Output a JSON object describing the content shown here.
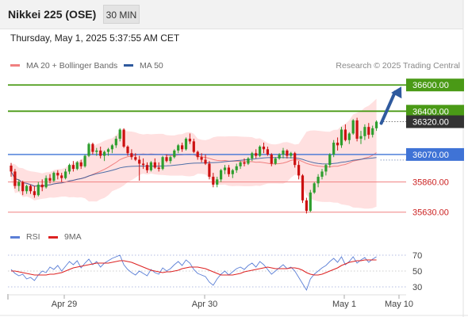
{
  "header": {
    "title": "Nikkei 225 (OSE)",
    "interval": "30 MIN",
    "timestamp": "Thursday, May 1, 2025 5:37:55 AM CET"
  },
  "colors": {
    "bullish": "#2e9e2e",
    "bearish": "#cc1111",
    "bands": "#ffdada",
    "ma20": "#f08080",
    "ma50": "#2f5a9e",
    "resistance": "#4a9a16",
    "pivot": "#3f73d6",
    "support": "#f08080",
    "last_price": "#333333",
    "arrow": "#2f5a9e",
    "rsi": "#5b7fd6",
    "rsi_ma": "#dd2222"
  },
  "chart_data": [
    {
      "type": "candlestick",
      "legend": [
        {
          "label": "MA 20 + Bollinger Bands",
          "color": "#f08080"
        },
        {
          "label": "MA 50",
          "color": "#2f5a9e"
        }
      ],
      "credit": "Research © 2025 Trading Central",
      "ylim": [
        35580,
        36680
      ],
      "x_ticks": [
        "Apr 29",
        "Apr 30",
        "May 1",
        "May 10"
      ],
      "levels": [
        {
          "label": "36600.00",
          "value": 36600,
          "kind": "resistance",
          "style": "box"
        },
        {
          "label": "36400.00",
          "value": 36400,
          "kind": "resistance",
          "style": "box"
        },
        {
          "label": "36320.00",
          "value": 36320,
          "kind": "last",
          "style": "box"
        },
        {
          "label": "36070.00",
          "value": 36070,
          "kind": "pivot",
          "style": "box"
        },
        {
          "label": "35860.00",
          "value": 35860,
          "kind": "support",
          "style": "text"
        },
        {
          "label": "35630.00",
          "value": 35630,
          "kind": "support",
          "style": "text"
        }
      ],
      "forecast_target": 36600,
      "candles": [
        [
          35985,
          36005,
          35900,
          35940
        ],
        [
          35940,
          35960,
          35810,
          35830
        ],
        [
          35830,
          35880,
          35790,
          35860
        ],
        [
          35860,
          35870,
          35760,
          35790
        ],
        [
          35790,
          35840,
          35770,
          35830
        ],
        [
          35830,
          35840,
          35770,
          35790
        ],
        [
          35790,
          35830,
          35740,
          35760
        ],
        [
          35760,
          35860,
          35750,
          35840
        ],
        [
          35840,
          35880,
          35790,
          35820
        ],
        [
          35820,
          35910,
          35810,
          35890
        ],
        [
          35890,
          35920,
          35850,
          35870
        ],
        [
          35870,
          35940,
          35860,
          35930
        ],
        [
          35930,
          35950,
          35880,
          35910
        ],
        [
          35910,
          35930,
          35860,
          35890
        ],
        [
          35890,
          35960,
          35880,
          35940
        ],
        [
          35940,
          36000,
          35920,
          35990
        ],
        [
          35990,
          36020,
          35940,
          35960
        ],
        [
          35960,
          36020,
          35950,
          36010
        ],
        [
          36010,
          36030,
          35960,
          35980
        ],
        [
          35980,
          36070,
          35970,
          36060
        ],
        [
          36060,
          36160,
          36050,
          36150
        ],
        [
          36150,
          36160,
          36070,
          36090
        ],
        [
          36090,
          36120,
          36060,
          36100
        ],
        [
          36100,
          36130,
          36040,
          36060
        ],
        [
          36060,
          36100,
          36020,
          36090
        ],
        [
          36090,
          36120,
          36060,
          36110
        ],
        [
          36110,
          36150,
          36080,
          36140
        ],
        [
          36140,
          36210,
          36120,
          36190
        ],
        [
          36190,
          36270,
          36170,
          36260
        ],
        [
          36260,
          36270,
          36120,
          36130
        ],
        [
          36130,
          36140,
          36060,
          36080
        ],
        [
          36080,
          36110,
          36030,
          36050
        ],
        [
          36050,
          36080,
          36020,
          36030
        ],
        [
          36030,
          36060,
          35870,
          36000
        ],
        [
          36000,
          36040,
          35960,
          35990
        ],
        [
          35990,
          36010,
          35930,
          35950
        ],
        [
          35950,
          36020,
          35940,
          36010
        ],
        [
          36010,
          36040,
          35960,
          35970
        ],
        [
          35970,
          36010,
          35940,
          35960
        ],
        [
          35960,
          36060,
          35950,
          36050
        ],
        [
          36050,
          36070,
          36010,
          36020
        ],
        [
          36020,
          36060,
          36000,
          36050
        ],
        [
          36050,
          36110,
          36040,
          36100
        ],
        [
          36100,
          36150,
          36080,
          36140
        ],
        [
          36140,
          36160,
          36090,
          36110
        ],
        [
          36110,
          36200,
          36100,
          36190
        ],
        [
          36190,
          36230,
          36150,
          36170
        ],
        [
          36170,
          36190,
          36080,
          36090
        ],
        [
          36090,
          36100,
          36030,
          36050
        ],
        [
          36050,
          36080,
          36010,
          36030
        ],
        [
          36030,
          36070,
          35990,
          36000
        ],
        [
          36000,
          36020,
          35880,
          35900
        ],
        [
          35900,
          35930,
          35820,
          35840
        ],
        [
          35840,
          35900,
          35820,
          35880
        ],
        [
          35880,
          35960,
          35860,
          35950
        ],
        [
          35950,
          35990,
          35920,
          35970
        ],
        [
          35970,
          35990,
          35900,
          35920
        ],
        [
          35920,
          35960,
          35890,
          35950
        ],
        [
          35950,
          36000,
          35930,
          35980
        ],
        [
          35980,
          36020,
          35960,
          36010
        ],
        [
          36010,
          36040,
          35980,
          36000
        ],
        [
          36000,
          36050,
          35990,
          36040
        ],
        [
          36040,
          36090,
          36020,
          36080
        ],
        [
          36080,
          36110,
          36040,
          36060
        ],
        [
          36060,
          36140,
          36050,
          36130
        ],
        [
          36130,
          36160,
          36080,
          36110
        ],
        [
          36110,
          36130,
          36060,
          36070
        ],
        [
          36070,
          36080,
          35980,
          36000
        ],
        [
          36000,
          36050,
          35990,
          36040
        ],
        [
          36040,
          36080,
          36030,
          36070
        ],
        [
          36070,
          36120,
          36040,
          36100
        ],
        [
          36100,
          36110,
          36040,
          36060
        ],
        [
          36060,
          36090,
          36040,
          36080
        ],
        [
          36080,
          36090,
          35970,
          35990
        ],
        [
          35990,
          36020,
          35880,
          35910
        ],
        [
          35910,
          35920,
          35700,
          35720
        ],
        [
          35720,
          35740,
          35620,
          35640
        ],
        [
          35640,
          35800,
          35630,
          35780
        ],
        [
          35780,
          35860,
          35770,
          35850
        ],
        [
          35850,
          35920,
          35820,
          35900
        ],
        [
          35900,
          35960,
          35880,
          35940
        ],
        [
          35940,
          36000,
          35910,
          35990
        ],
        [
          35990,
          36080,
          35970,
          36070
        ],
        [
          36070,
          36180,
          36050,
          36160
        ],
        [
          36160,
          36200,
          36100,
          36140
        ],
        [
          36140,
          36280,
          36120,
          36260
        ],
        [
          36260,
          36300,
          36170,
          36180
        ],
        [
          36180,
          36240,
          36150,
          36230
        ],
        [
          36230,
          36340,
          36220,
          36330
        ],
        [
          36330,
          36350,
          36170,
          36190
        ],
        [
          36190,
          36250,
          36150,
          36210
        ],
        [
          36210,
          36300,
          36180,
          36280
        ],
        [
          36280,
          36310,
          36190,
          36220
        ],
        [
          36220,
          36290,
          36200,
          36270
        ],
        [
          36270,
          36330,
          36250,
          36320
        ]
      ]
    },
    {
      "type": "line",
      "legend": [
        {
          "label": "RSI",
          "color": "#5b7fd6"
        },
        {
          "label": "9MA",
          "color": "#dd2222"
        }
      ],
      "ylim": [
        20,
        80
      ],
      "y_ticks": [
        "70",
        "50",
        "30"
      ],
      "series": [
        {
          "name": "RSI",
          "values": [
            52,
            47,
            44,
            46,
            40,
            42,
            38,
            45,
            50,
            48,
            55,
            52,
            57,
            50,
            56,
            62,
            58,
            63,
            54,
            60,
            65,
            58,
            62,
            55,
            60,
            63,
            66,
            68,
            70,
            58,
            52,
            48,
            45,
            50,
            47,
            44,
            52,
            48,
            46,
            54,
            50,
            53,
            58,
            62,
            57,
            64,
            60,
            52,
            47,
            45,
            43,
            36,
            32,
            40,
            46,
            50,
            45,
            49,
            53,
            55,
            52,
            57,
            60,
            55,
            62,
            58,
            52,
            46,
            50,
            54,
            58,
            53,
            55,
            50,
            42,
            34,
            26,
            40,
            46,
            50,
            54,
            57,
            62,
            66,
            61,
            68,
            58,
            62,
            68,
            60,
            64,
            67,
            61,
            65,
            68
          ]
        },
        {
          "name": "9MA",
          "values": [
            50,
            50,
            49,
            48,
            47,
            46,
            45,
            45,
            45,
            45,
            46,
            46,
            47,
            48,
            50,
            52,
            54,
            55,
            56,
            57,
            58,
            59,
            60,
            60,
            60,
            60,
            61,
            62,
            63,
            63,
            62,
            61,
            59,
            57,
            55,
            53,
            51,
            50,
            49,
            48,
            49,
            49,
            50,
            51,
            53,
            54,
            55,
            55,
            55,
            54,
            53,
            51,
            49,
            47,
            45,
            45,
            45,
            45,
            46,
            47,
            49,
            50,
            51,
            52,
            53,
            54,
            55,
            54,
            53,
            53,
            53,
            53,
            54,
            54,
            53,
            51,
            48,
            46,
            45,
            45,
            46,
            48,
            50,
            52,
            54,
            57,
            59,
            61,
            62,
            63,
            63,
            64,
            64,
            64,
            64
          ]
        }
      ]
    }
  ]
}
